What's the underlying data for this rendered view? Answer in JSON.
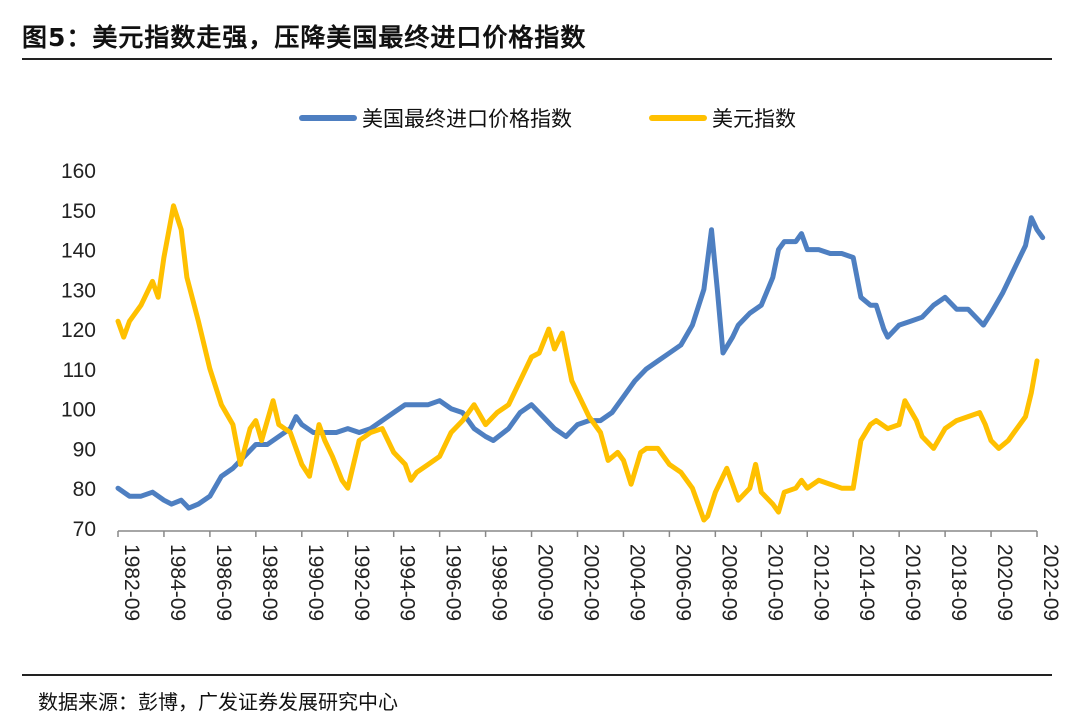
{
  "title": "图5：美元指数走强，压降美国最终进口价格指数",
  "source": "数据来源：彭博，广发证券发展研究中心",
  "chart_data": {
    "type": "line",
    "ylim": [
      70,
      160
    ],
    "yticks": [
      70,
      80,
      90,
      100,
      110,
      120,
      130,
      140,
      150,
      160
    ],
    "x_range": [
      "1982-09",
      "2022-12"
    ],
    "x_ticks": [
      "1982-09",
      "1984-09",
      "1986-09",
      "1988-09",
      "1990-09",
      "1992-09",
      "1994-09",
      "1996-09",
      "1998-09",
      "2000-09",
      "2002-09",
      "2004-09",
      "2006-09",
      "2008-09",
      "2010-09",
      "2012-09",
      "2014-09",
      "2016-09",
      "2018-09",
      "2020-09",
      "2022-09"
    ],
    "legend_position": "top",
    "grid": false,
    "series": [
      {
        "name": "美国最终进口价格指数",
        "color": "#4E7FC1",
        "points": [
          [
            "1982-09",
            80
          ],
          [
            "1983-03",
            78
          ],
          [
            "1983-09",
            78
          ],
          [
            "1984-03",
            79
          ],
          [
            "1984-09",
            77
          ],
          [
            "1985-01",
            76
          ],
          [
            "1985-06",
            77
          ],
          [
            "1985-10",
            75
          ],
          [
            "1986-03",
            76
          ],
          [
            "1986-09",
            78
          ],
          [
            "1987-03",
            83
          ],
          [
            "1987-09",
            85
          ],
          [
            "1988-03",
            88
          ],
          [
            "1988-09",
            91
          ],
          [
            "1989-03",
            91
          ],
          [
            "1989-09",
            93
          ],
          [
            "1990-03",
            95
          ],
          [
            "1990-06",
            98
          ],
          [
            "1990-09",
            96
          ],
          [
            "1991-03",
            94
          ],
          [
            "1991-09",
            94
          ],
          [
            "1992-03",
            94
          ],
          [
            "1992-09",
            95
          ],
          [
            "1993-03",
            94
          ],
          [
            "1993-09",
            95
          ],
          [
            "1994-03",
            97
          ],
          [
            "1994-09",
            99
          ],
          [
            "1995-03",
            101
          ],
          [
            "1995-09",
            101
          ],
          [
            "1996-03",
            101
          ],
          [
            "1996-09",
            102
          ],
          [
            "1997-03",
            100
          ],
          [
            "1997-09",
            99
          ],
          [
            "1998-03",
            95
          ],
          [
            "1998-09",
            93
          ],
          [
            "1999-01",
            92
          ],
          [
            "1999-09",
            95
          ],
          [
            "2000-03",
            99
          ],
          [
            "2000-09",
            101
          ],
          [
            "2001-03",
            98
          ],
          [
            "2001-09",
            95
          ],
          [
            "2002-03",
            93
          ],
          [
            "2002-09",
            96
          ],
          [
            "2003-03",
            97
          ],
          [
            "2003-09",
            97
          ],
          [
            "2004-03",
            99
          ],
          [
            "2004-09",
            103
          ],
          [
            "2005-03",
            107
          ],
          [
            "2005-09",
            110
          ],
          [
            "2006-03",
            112
          ],
          [
            "2006-09",
            114
          ],
          [
            "2007-03",
            116
          ],
          [
            "2007-09",
            121
          ],
          [
            "2008-03",
            130
          ],
          [
            "2008-07",
            145
          ],
          [
            "2008-10",
            130
          ],
          [
            "2009-01",
            114
          ],
          [
            "2009-06",
            118
          ],
          [
            "2009-09",
            121
          ],
          [
            "2010-03",
            124
          ],
          [
            "2010-09",
            126
          ],
          [
            "2011-03",
            133
          ],
          [
            "2011-06",
            140
          ],
          [
            "2011-09",
            142
          ],
          [
            "2012-03",
            142
          ],
          [
            "2012-06",
            144
          ],
          [
            "2012-09",
            140
          ],
          [
            "2013-03",
            140
          ],
          [
            "2013-09",
            139
          ],
          [
            "2014-03",
            139
          ],
          [
            "2014-09",
            138
          ],
          [
            "2015-01",
            128
          ],
          [
            "2015-06",
            126
          ],
          [
            "2015-09",
            126
          ],
          [
            "2016-01",
            120
          ],
          [
            "2016-03",
            118
          ],
          [
            "2016-09",
            121
          ],
          [
            "2017-03",
            122
          ],
          [
            "2017-09",
            123
          ],
          [
            "2018-03",
            126
          ],
          [
            "2018-09",
            128
          ],
          [
            "2019-03",
            125
          ],
          [
            "2019-09",
            125
          ],
          [
            "2020-03",
            122
          ],
          [
            "2020-05",
            121
          ],
          [
            "2020-09",
            124
          ],
          [
            "2021-03",
            129
          ],
          [
            "2021-09",
            135
          ],
          [
            "2022-03",
            141
          ],
          [
            "2022-06",
            148
          ],
          [
            "2022-09",
            145
          ],
          [
            "2022-12",
            143
          ]
        ]
      },
      {
        "name": "美元指数",
        "color": "#FFC000",
        "points": [
          [
            "1982-09",
            122
          ],
          [
            "1982-12",
            118
          ],
          [
            "1983-03",
            122
          ],
          [
            "1983-09",
            126
          ],
          [
            "1984-03",
            132
          ],
          [
            "1984-06",
            128
          ],
          [
            "1984-09",
            138
          ],
          [
            "1985-02",
            151
          ],
          [
            "1985-06",
            145
          ],
          [
            "1985-09",
            133
          ],
          [
            "1986-03",
            122
          ],
          [
            "1986-09",
            110
          ],
          [
            "1987-03",
            101
          ],
          [
            "1987-09",
            96
          ],
          [
            "1988-01",
            86
          ],
          [
            "1988-06",
            95
          ],
          [
            "1988-09",
            97
          ],
          [
            "1988-12",
            92
          ],
          [
            "1989-06",
            102
          ],
          [
            "1989-09",
            96
          ],
          [
            "1990-03",
            94
          ],
          [
            "1990-09",
            86
          ],
          [
            "1991-01",
            83
          ],
          [
            "1991-06",
            96
          ],
          [
            "1991-09",
            92
          ],
          [
            "1992-01",
            88
          ],
          [
            "1992-06",
            82
          ],
          [
            "1992-09",
            80
          ],
          [
            "1993-03",
            92
          ],
          [
            "1993-09",
            94
          ],
          [
            "1994-03",
            95
          ],
          [
            "1994-09",
            89
          ],
          [
            "1995-03",
            86
          ],
          [
            "1995-06",
            82
          ],
          [
            "1995-09",
            84
          ],
          [
            "1996-03",
            86
          ],
          [
            "1996-09",
            88
          ],
          [
            "1997-03",
            94
          ],
          [
            "1997-09",
            97
          ],
          [
            "1998-03",
            101
          ],
          [
            "1998-09",
            96
          ],
          [
            "1999-03",
            99
          ],
          [
            "1999-09",
            101
          ],
          [
            "2000-03",
            107
          ],
          [
            "2000-09",
            113
          ],
          [
            "2001-01",
            114
          ],
          [
            "2001-06",
            120
          ],
          [
            "2001-09",
            115
          ],
          [
            "2002-01",
            119
          ],
          [
            "2002-06",
            107
          ],
          [
            "2002-09",
            104
          ],
          [
            "2003-03",
            98
          ],
          [
            "2003-09",
            94
          ],
          [
            "2004-01",
            87
          ],
          [
            "2004-06",
            89
          ],
          [
            "2004-09",
            87
          ],
          [
            "2005-01",
            81
          ],
          [
            "2005-06",
            89
          ],
          [
            "2005-09",
            90
          ],
          [
            "2006-03",
            90
          ],
          [
            "2006-09",
            86
          ],
          [
            "2007-03",
            84
          ],
          [
            "2007-09",
            80
          ],
          [
            "2008-03",
            72
          ],
          [
            "2008-05",
            73
          ],
          [
            "2008-09",
            79
          ],
          [
            "2009-03",
            85
          ],
          [
            "2009-09",
            77
          ],
          [
            "2010-03",
            80
          ],
          [
            "2010-06",
            86
          ],
          [
            "2010-09",
            79
          ],
          [
            "2011-03",
            76
          ],
          [
            "2011-06",
            74
          ],
          [
            "2011-09",
            79
          ],
          [
            "2012-03",
            80
          ],
          [
            "2012-06",
            82
          ],
          [
            "2012-09",
            80
          ],
          [
            "2013-03",
            82
          ],
          [
            "2013-09",
            81
          ],
          [
            "2014-03",
            80
          ],
          [
            "2014-09",
            80
          ],
          [
            "2015-01",
            92
          ],
          [
            "2015-06",
            96
          ],
          [
            "2015-09",
            97
          ],
          [
            "2016-03",
            95
          ],
          [
            "2016-09",
            96
          ],
          [
            "2016-12",
            102
          ],
          [
            "2017-06",
            97
          ],
          [
            "2017-09",
            93
          ],
          [
            "2018-03",
            90
          ],
          [
            "2018-09",
            95
          ],
          [
            "2019-03",
            97
          ],
          [
            "2019-09",
            98
          ],
          [
            "2020-03",
            99
          ],
          [
            "2020-06",
            96
          ],
          [
            "2020-09",
            92
          ],
          [
            "2021-01",
            90
          ],
          [
            "2021-06",
            92
          ],
          [
            "2021-09",
            94
          ],
          [
            "2022-03",
            98
          ],
          [
            "2022-06",
            104
          ],
          [
            "2022-09",
            112
          ]
        ]
      }
    ]
  }
}
